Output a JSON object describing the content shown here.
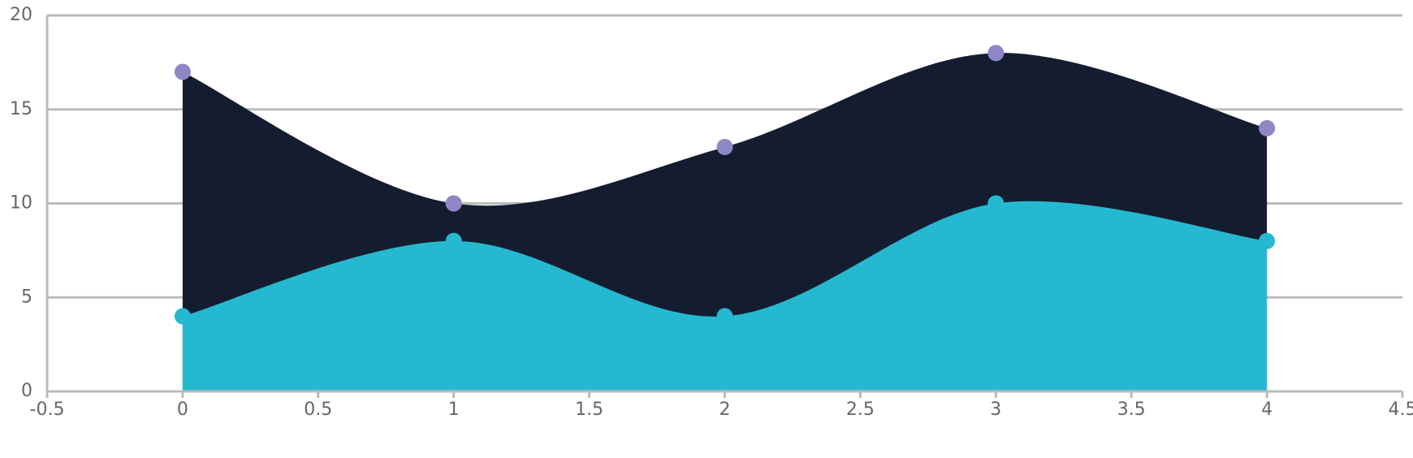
{
  "chart_data": {
    "type": "area",
    "x": [
      0,
      1,
      2,
      3,
      4
    ],
    "series": [
      {
        "color": "#141d2f",
        "marker_color": "#8f86c5",
        "values": [
          17,
          10,
          13,
          18,
          14
        ]
      },
      {
        "color": "#25b9d1",
        "marker_color": "#25b9d1",
        "values": [
          4,
          8,
          4,
          10,
          8
        ]
      }
    ],
    "xlim": [
      -0.5,
      4.5
    ],
    "xticks": [
      -0.5,
      0,
      0.5,
      1,
      1.5,
      2,
      2.5,
      3,
      3.5,
      4,
      4.5
    ],
    "ylim": [
      0,
      20
    ],
    "yticks": [
      0,
      5,
      10,
      15,
      20
    ],
    "grid": true
  }
}
